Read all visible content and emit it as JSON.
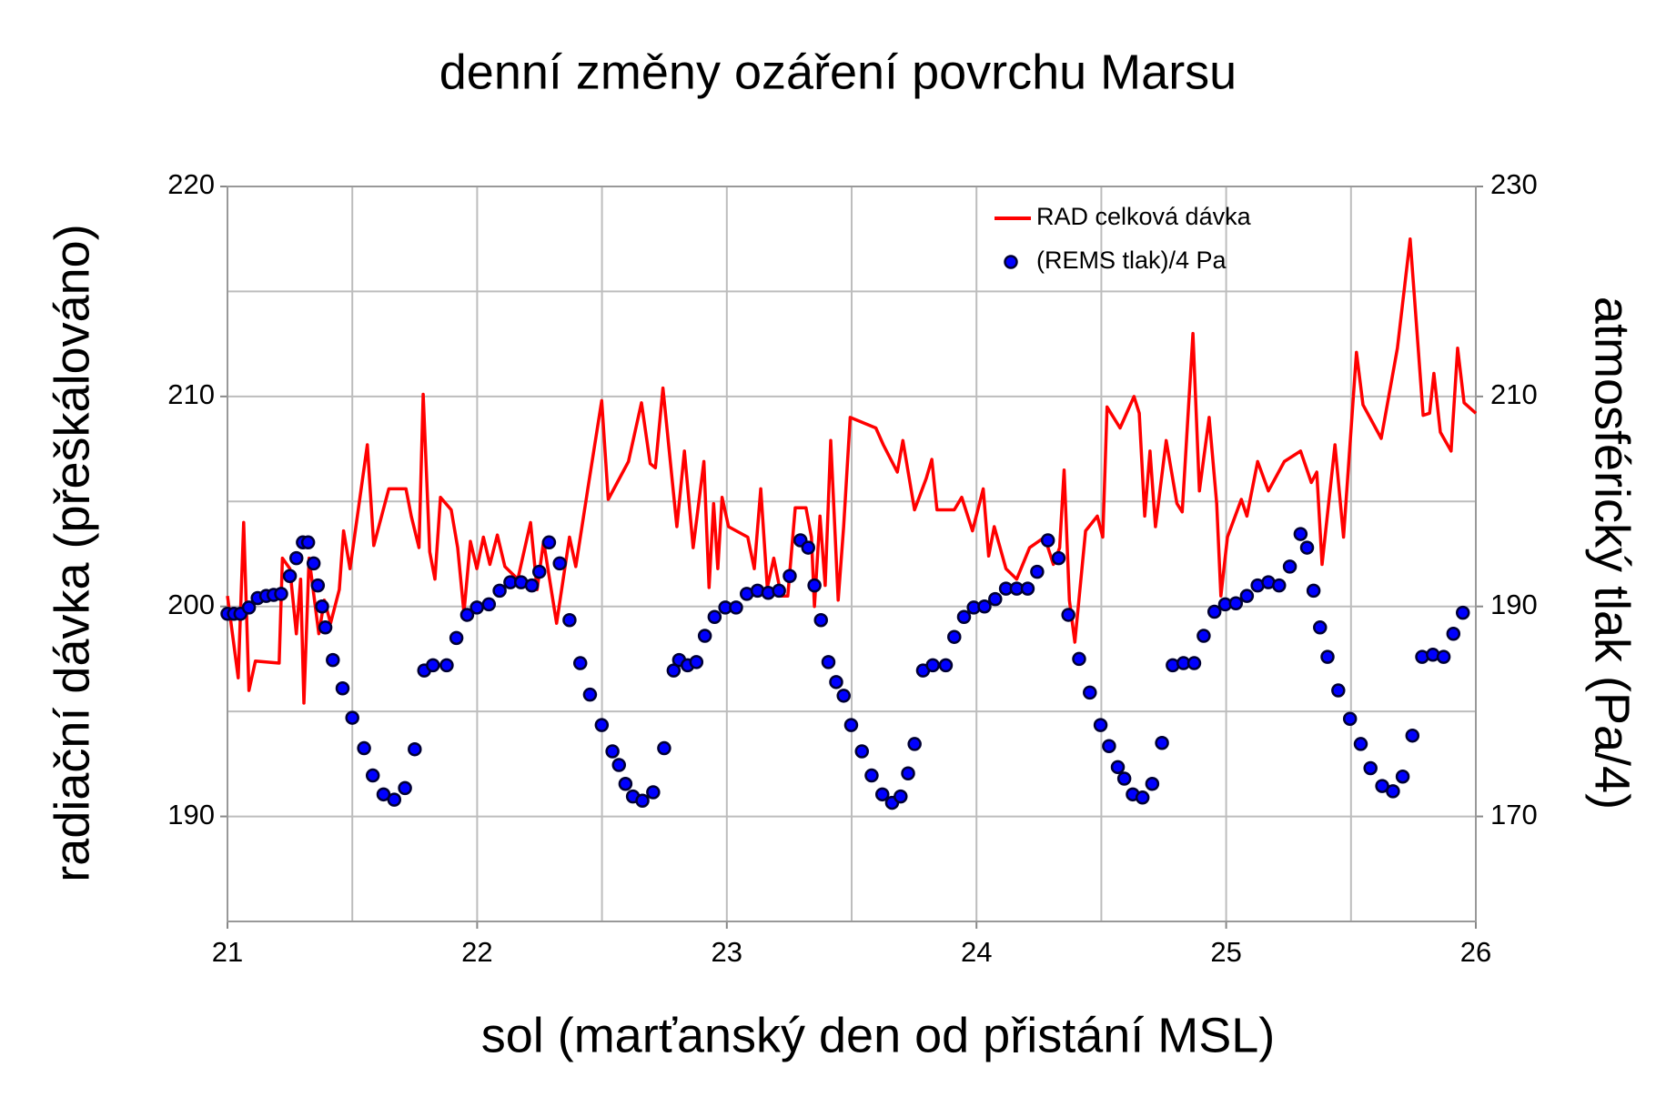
{
  "chart_data": {
    "type": "line",
    "title": "denní změny ozáření povrchu Marsu",
    "x_label": "sol (marťanský den od přistání MSL)",
    "y_label": "radiační dávka (přeškálováno)",
    "y2_label": "atmosférický tlak (Pa/4)",
    "xlim": [
      21,
      26
    ],
    "xticks": [
      21,
      22,
      23,
      24,
      25,
      26
    ],
    "x_minor_grid": [
      21.5,
      22.5,
      23.5,
      24.5,
      25.5
    ],
    "ylim": [
      185,
      220
    ],
    "yticks": [
      190,
      200,
      210,
      220
    ],
    "y_minor_grid": [
      195,
      205,
      215
    ],
    "y2lim": [
      160,
      230
    ],
    "y2ticks": [
      170,
      190,
      210,
      230
    ],
    "grid": true,
    "legend": "upper right",
    "series": [
      {
        "name": "RAD celková dávka",
        "color": "#ff0000",
        "style": "line",
        "x": [
          21.0,
          21.043,
          21.065,
          21.086,
          21.112,
          21.207,
          21.22,
          21.25,
          21.276,
          21.293,
          21.306,
          21.327,
          21.366,
          21.388,
          21.413,
          21.448,
          21.465,
          21.491,
          21.56,
          21.586,
          21.646,
          21.715,
          21.736,
          21.767,
          21.784,
          21.81,
          21.831,
          21.853,
          21.896,
          21.922,
          21.947,
          21.973,
          21.999,
          22.025,
          22.051,
          22.081,
          22.111,
          22.163,
          22.214,
          22.24,
          22.266,
          22.318,
          22.37,
          22.395,
          22.447,
          22.499,
          22.525,
          22.606,
          22.658,
          22.693,
          22.714,
          22.744,
          22.8,
          22.83,
          22.865,
          22.908,
          22.929,
          22.947,
          22.964,
          22.981,
          23.007,
          23.084,
          23.11,
          23.136,
          23.162,
          23.188,
          23.218,
          23.244,
          23.274,
          23.317,
          23.339,
          23.351,
          23.373,
          23.394,
          23.416,
          23.446,
          23.468,
          23.494,
          23.597,
          23.627,
          23.683,
          23.705,
          23.752,
          23.799,
          23.821,
          23.842,
          23.911,
          23.941,
          23.984,
          24.027,
          24.049,
          24.071,
          24.118,
          24.161,
          24.213,
          24.273,
          24.308,
          24.333,
          24.351,
          24.372,
          24.394,
          24.437,
          24.484,
          24.506,
          24.523,
          24.575,
          24.631,
          24.652,
          24.674,
          24.695,
          24.717,
          24.76,
          24.803,
          24.824,
          24.867,
          24.893,
          24.932,
          24.962,
          24.979,
          25.005,
          25.061,
          25.083,
          25.126,
          25.169,
          25.233,
          25.298,
          25.341,
          25.363,
          25.384,
          25.436,
          25.47,
          25.522,
          25.548,
          25.621,
          25.686,
          25.737,
          25.789,
          25.815,
          25.832,
          25.858,
          25.901,
          25.927,
          25.953,
          26.0
        ],
        "values": [
          200.5,
          196.6,
          204.0,
          196.0,
          197.4,
          197.3,
          202.3,
          201.8,
          198.7,
          201.3,
          195.4,
          202.3,
          198.7,
          200.3,
          199.2,
          200.8,
          203.6,
          201.8,
          207.7,
          202.9,
          205.6,
          205.6,
          204.3,
          202.8,
          210.1,
          202.6,
          201.3,
          205.2,
          204.6,
          202.8,
          199.7,
          203.1,
          201.8,
          203.3,
          202.0,
          203.4,
          201.9,
          201.3,
          204.0,
          200.8,
          203.1,
          199.2,
          203.3,
          201.9,
          205.9,
          209.8,
          205.1,
          206.9,
          209.7,
          206.8,
          206.6,
          210.4,
          203.8,
          207.4,
          202.8,
          206.9,
          200.9,
          204.9,
          201.8,
          205.2,
          203.8,
          203.3,
          201.8,
          205.6,
          200.9,
          202.3,
          200.5,
          200.5,
          204.7,
          204.7,
          203.3,
          200.0,
          204.3,
          201.0,
          207.9,
          200.3,
          203.8,
          209.0,
          208.5,
          207.7,
          206.4,
          207.9,
          204.6,
          206.1,
          207.0,
          204.6,
          204.6,
          205.2,
          203.6,
          205.6,
          202.4,
          203.8,
          201.8,
          201.3,
          202.8,
          203.3,
          202.0,
          202.8,
          206.5,
          200.3,
          198.3,
          203.6,
          204.3,
          203.3,
          209.5,
          208.5,
          210.0,
          209.2,
          204.3,
          207.4,
          203.8,
          207.9,
          204.9,
          204.5,
          213.0,
          205.5,
          209.0,
          204.9,
          200.5,
          203.3,
          205.1,
          204.3,
          206.9,
          205.5,
          206.9,
          207.4,
          205.9,
          206.4,
          202.0,
          207.7,
          203.3,
          212.1,
          209.6,
          208.0,
          212.3,
          217.5,
          209.1,
          209.2,
          211.1,
          208.3,
          207.4,
          212.3,
          209.7,
          209.2
        ]
      },
      {
        "name": "(REMS tlak)/4 Pa",
        "color": "#0000ff",
        "edge_color": "#000033",
        "style": "dots",
        "axis": "y2",
        "x": [
          21.0,
          21.026,
          21.052,
          21.086,
          21.121,
          21.155,
          21.185,
          21.215,
          21.25,
          21.276,
          21.302,
          21.323,
          21.345,
          21.362,
          21.379,
          21.392,
          21.422,
          21.461,
          21.5,
          21.547,
          21.582,
          21.625,
          21.668,
          21.711,
          21.75,
          21.788,
          21.823,
          21.878,
          21.917,
          21.96,
          21.999,
          22.047,
          22.09,
          22.133,
          22.176,
          22.219,
          22.249,
          22.288,
          22.331,
          22.37,
          22.413,
          22.452,
          22.499,
          22.542,
          22.568,
          22.594,
          22.624,
          22.662,
          22.705,
          22.749,
          22.787,
          22.809,
          22.843,
          22.878,
          22.912,
          22.951,
          22.994,
          23.037,
          23.08,
          23.123,
          23.166,
          23.209,
          23.252,
          23.295,
          23.326,
          23.351,
          23.377,
          23.407,
          23.438,
          23.468,
          23.498,
          23.541,
          23.58,
          23.623,
          23.662,
          23.696,
          23.726,
          23.752,
          23.786,
          23.825,
          23.877,
          23.911,
          23.95,
          23.989,
          24.032,
          24.075,
          24.118,
          24.161,
          24.205,
          24.243,
          24.286,
          24.329,
          24.368,
          24.411,
          24.454,
          24.497,
          24.531,
          24.566,
          24.592,
          24.626,
          24.665,
          24.704,
          24.743,
          24.786,
          24.829,
          24.872,
          24.91,
          24.953,
          24.996,
          25.039,
          25.083,
          25.126,
          25.169,
          25.212,
          25.255,
          25.298,
          25.324,
          25.35,
          25.376,
          25.406,
          25.449,
          25.496,
          25.539,
          25.578,
          25.625,
          25.668,
          25.707,
          25.746,
          25.785,
          25.828,
          25.871,
          25.91,
          25.948
        ],
        "values": [
          189.3,
          189.3,
          189.3,
          189.9,
          190.8,
          191.0,
          191.1,
          191.2,
          192.9,
          194.6,
          196.1,
          196.1,
          194.1,
          192.0,
          190.0,
          188.0,
          184.9,
          182.2,
          179.4,
          176.5,
          173.9,
          172.1,
          171.6,
          172.7,
          176.4,
          183.9,
          184.4,
          184.4,
          187.0,
          189.2,
          189.9,
          190.2,
          191.5,
          192.3,
          192.3,
          192.0,
          193.3,
          196.1,
          194.1,
          188.7,
          184.6,
          181.6,
          178.7,
          176.2,
          174.9,
          173.1,
          171.9,
          171.5,
          172.3,
          176.5,
          183.9,
          184.9,
          184.4,
          184.7,
          187.2,
          189.0,
          189.9,
          189.9,
          191.2,
          191.5,
          191.3,
          191.5,
          192.9,
          196.3,
          195.6,
          192.0,
          188.7,
          184.7,
          182.8,
          181.5,
          178.7,
          176.2,
          173.9,
          172.1,
          171.3,
          171.9,
          174.1,
          176.9,
          183.9,
          184.4,
          184.4,
          187.1,
          189.0,
          189.9,
          190.0,
          190.7,
          191.7,
          191.7,
          191.7,
          193.3,
          196.3,
          194.6,
          189.2,
          185.0,
          181.8,
          178.7,
          176.7,
          174.7,
          173.6,
          172.1,
          171.8,
          173.1,
          177.0,
          184.4,
          184.6,
          184.6,
          187.2,
          189.5,
          190.2,
          190.3,
          191.0,
          192.0,
          192.3,
          192.0,
          193.8,
          196.9,
          195.6,
          191.5,
          188.0,
          185.2,
          182.0,
          179.3,
          176.9,
          174.6,
          172.9,
          172.4,
          173.8,
          177.7,
          185.2,
          185.4,
          185.2,
          187.4,
          189.4
        ]
      }
    ]
  }
}
